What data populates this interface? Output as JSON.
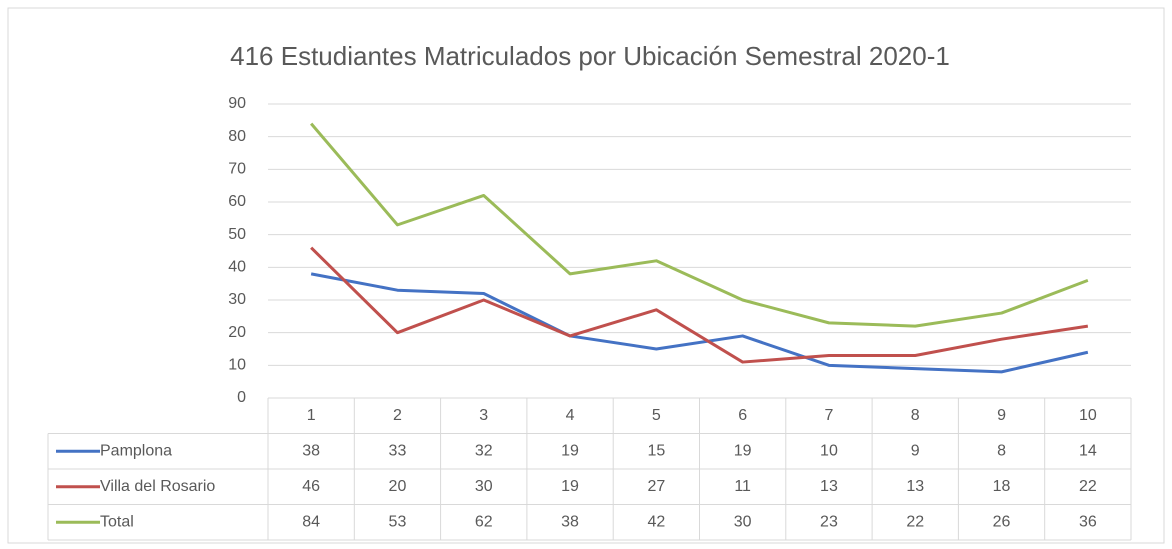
{
  "chart_data": {
    "type": "line",
    "title": "416 Estudiantes Matriculados por Ubicación Semestral 2020-1",
    "categories": [
      "1",
      "2",
      "3",
      "4",
      "5",
      "6",
      "7",
      "8",
      "9",
      "10"
    ],
    "series": [
      {
        "name": "Pamplona",
        "color": "#4472c4",
        "values": [
          38,
          33,
          32,
          19,
          15,
          19,
          10,
          9,
          8,
          14
        ]
      },
      {
        "name": "Villa del Rosario",
        "color": "#c0504d",
        "values": [
          46,
          20,
          30,
          19,
          27,
          11,
          13,
          13,
          18,
          22
        ]
      },
      {
        "name": "Total",
        "color": "#9bbb59",
        "values": [
          84,
          53,
          62,
          38,
          42,
          30,
          23,
          22,
          26,
          36
        ]
      }
    ],
    "ylim": [
      0,
      90
    ],
    "yticks": [
      0,
      10,
      20,
      30,
      40,
      50,
      60,
      70,
      80,
      90
    ],
    "grid": true
  }
}
